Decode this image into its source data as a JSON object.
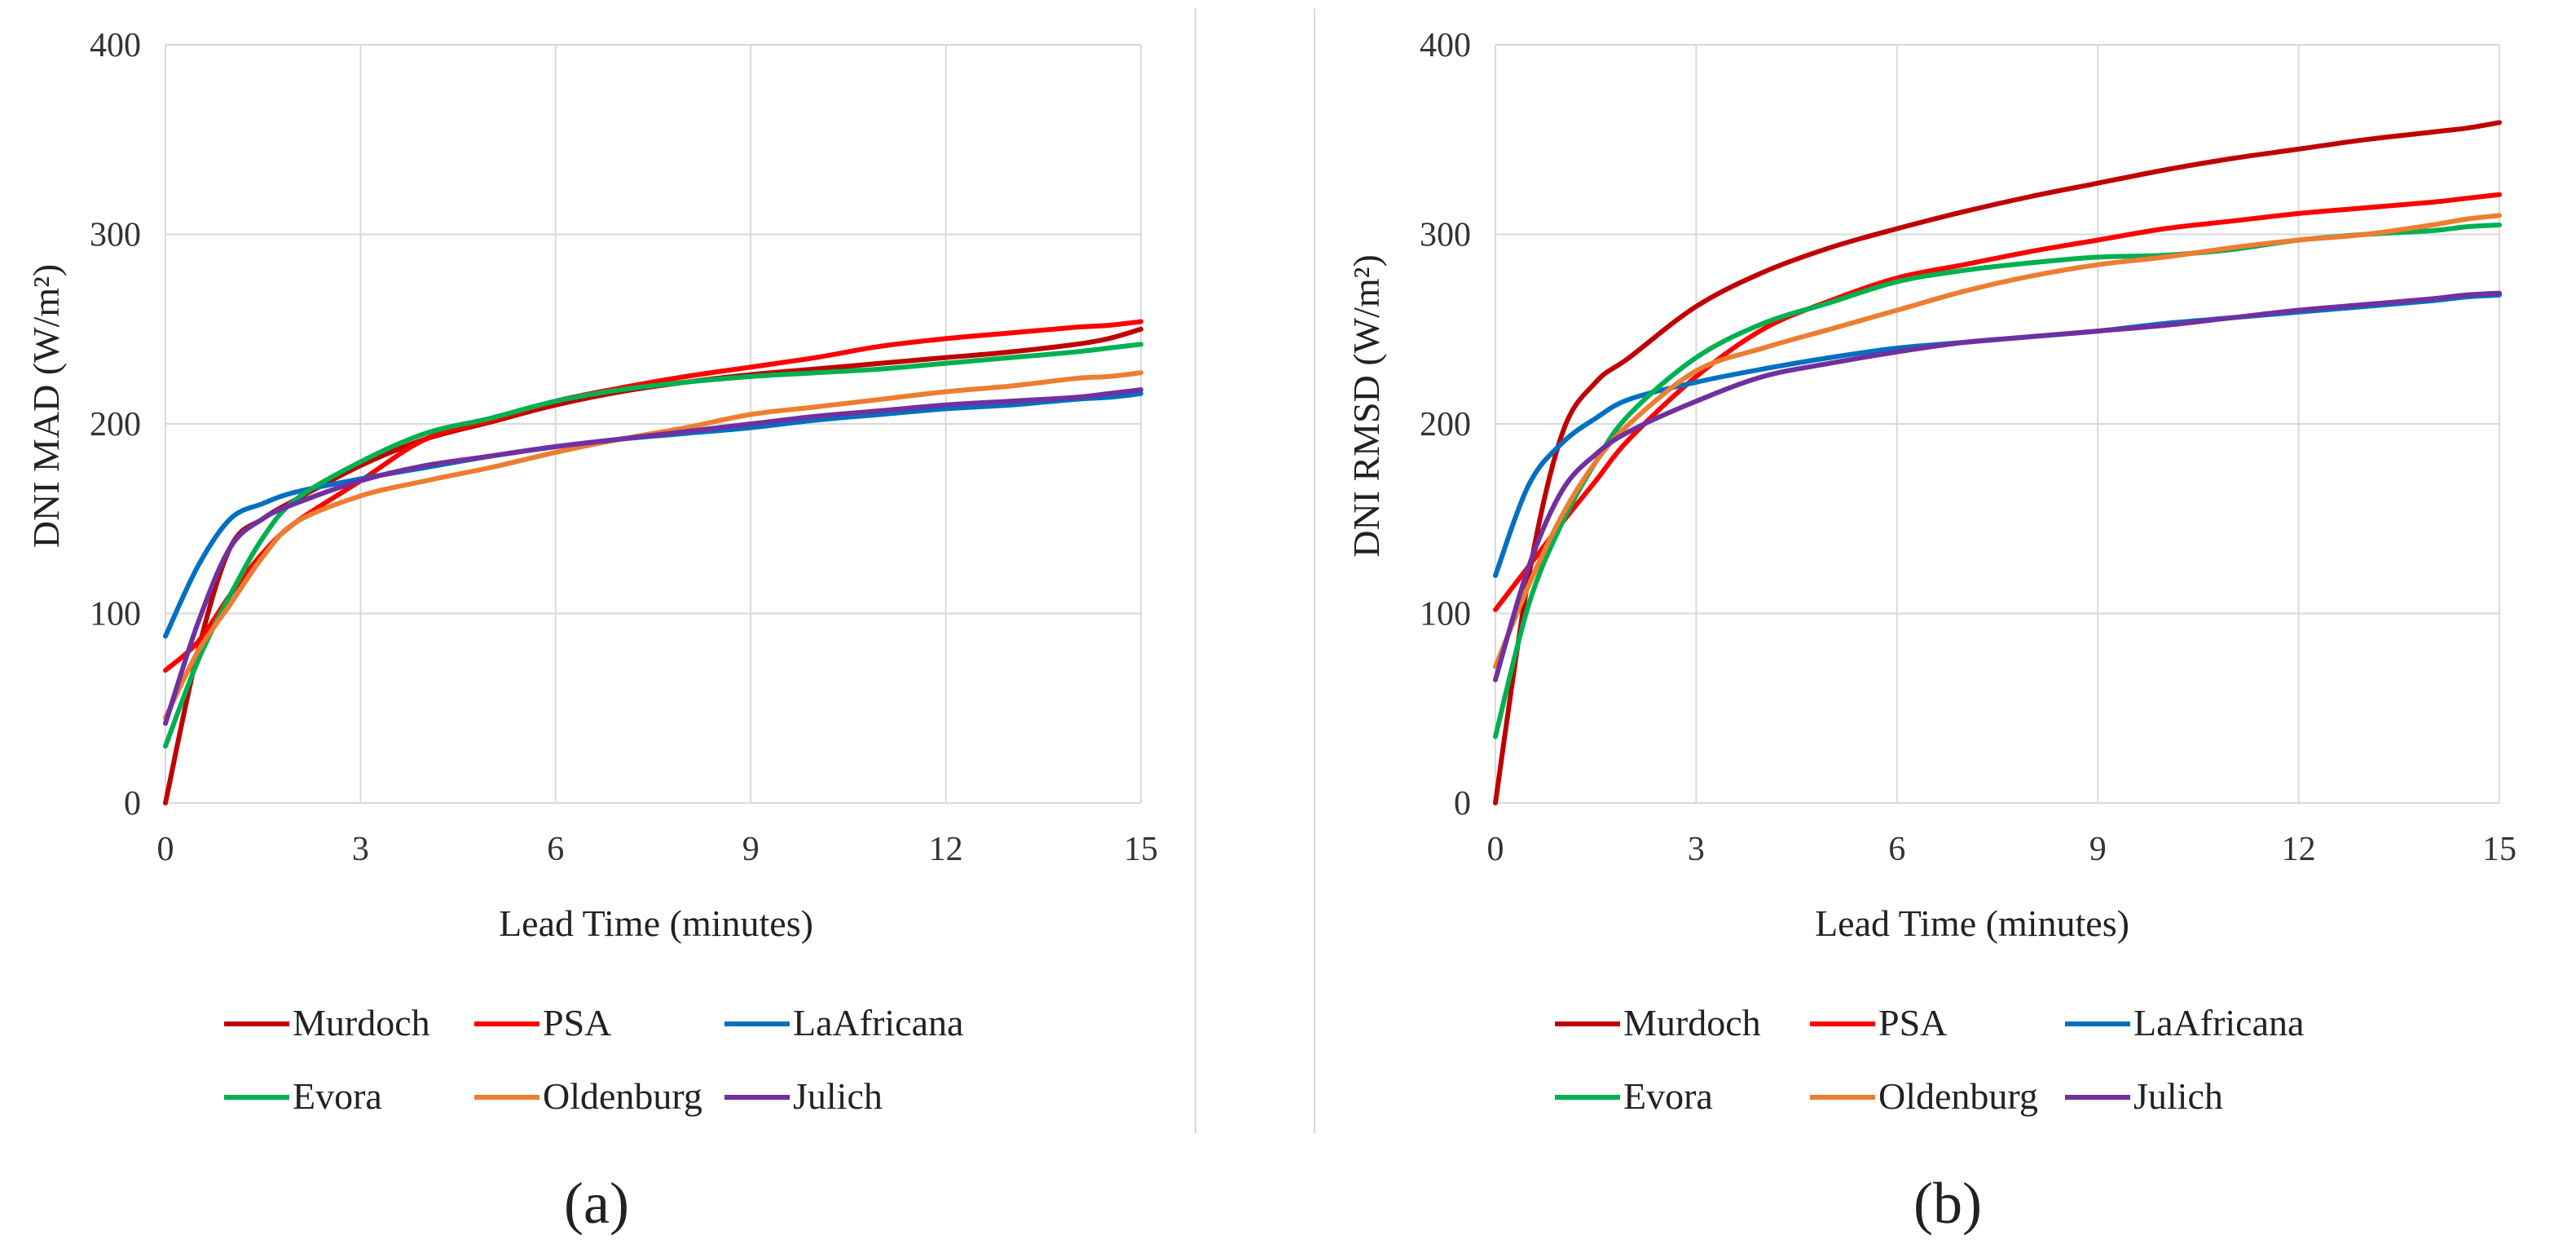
{
  "chart_data": [
    {
      "type": "line",
      "panel_label": "a",
      "caption": "(a)",
      "xlabel": "Lead Time (minutes)",
      "ylabel": "DNI MAD (W/m²)",
      "xlim": [
        0,
        15
      ],
      "ylim": [
        0,
        400
      ],
      "xticks": [
        0,
        3,
        6,
        9,
        12,
        15
      ],
      "yticks": [
        0,
        100,
        200,
        300,
        400
      ],
      "grid": true,
      "legend": "bottom",
      "x": [
        0,
        0.5,
        1,
        1.5,
        2,
        3,
        4,
        5,
        6,
        7,
        8,
        9,
        10,
        11,
        12,
        13,
        14,
        14.5,
        15
      ],
      "series": [
        {
          "name": "Murdoch",
          "color": "#c00000",
          "values": [
            0,
            80,
            135,
            150,
            160,
            178,
            192,
            201,
            210,
            217,
            222,
            226,
            229,
            232,
            235,
            238,
            242,
            245,
            250
          ]
        },
        {
          "name": "PSA",
          "color": "#ff0000",
          "values": [
            70,
            85,
            110,
            132,
            148,
            170,
            192,
            202,
            212,
            219,
            225,
            230,
            235,
            241,
            245,
            248,
            251,
            252,
            254
          ]
        },
        {
          "name": "LaAfricana",
          "color": "#0070c0",
          "values": [
            88,
            125,
            150,
            158,
            164,
            171,
            177,
            183,
            188,
            192,
            195,
            198,
            202,
            205,
            208,
            210,
            213,
            214,
            216
          ]
        },
        {
          "name": "Evora",
          "color": "#00b050",
          "values": [
            30,
            75,
            110,
            140,
            160,
            180,
            195,
            203,
            212,
            218,
            222,
            225,
            227,
            229,
            232,
            235,
            238,
            240,
            242
          ]
        },
        {
          "name": "Oldenburg",
          "color": "#ed7d31",
          "values": [
            45,
            80,
            105,
            130,
            148,
            162,
            170,
            177,
            185,
            192,
            198,
            205,
            209,
            213,
            217,
            220,
            224,
            225,
            227
          ]
        },
        {
          "name": "Julich",
          "color": "#7030a0",
          "values": [
            42,
            95,
            135,
            150,
            158,
            170,
            178,
            183,
            188,
            192,
            196,
            200,
            204,
            207,
            210,
            212,
            214,
            216,
            218
          ]
        }
      ]
    },
    {
      "type": "line",
      "panel_label": "b",
      "caption": "(b)",
      "xlabel": "Lead Time (minutes)",
      "ylabel": "DNI RMSD (W/m²)",
      "xlim": [
        0,
        15
      ],
      "ylim": [
        0,
        400
      ],
      "xticks": [
        0,
        3,
        6,
        9,
        12,
        15
      ],
      "yticks": [
        0,
        100,
        200,
        300,
        400
      ],
      "grid": true,
      "legend": "bottom",
      "x": [
        0,
        0.5,
        1,
        1.5,
        2,
        3,
        4,
        5,
        6,
        7,
        8,
        9,
        10,
        11,
        12,
        13,
        14,
        14.5,
        15
      ],
      "series": [
        {
          "name": "Murdoch",
          "color": "#c00000",
          "values": [
            0,
            120,
            195,
            222,
            235,
            262,
            280,
            293,
            303,
            312,
            320,
            327,
            334,
            340,
            345,
            350,
            354,
            356,
            359
          ]
        },
        {
          "name": "PSA",
          "color": "#ff0000",
          "values": [
            102,
            125,
            148,
            170,
            192,
            225,
            250,
            265,
            277,
            284,
            291,
            297,
            303,
            307,
            311,
            314,
            317,
            319,
            321
          ]
        },
        {
          "name": "LaAfricana",
          "color": "#0070c0",
          "values": [
            120,
            168,
            190,
            203,
            213,
            222,
            229,
            235,
            240,
            243,
            246,
            249,
            253,
            256,
            259,
            262,
            265,
            267,
            268
          ]
        },
        {
          "name": "Evora",
          "color": "#00b050",
          "values": [
            35,
            105,
            148,
            180,
            205,
            235,
            253,
            264,
            275,
            281,
            285,
            288,
            289,
            292,
            297,
            300,
            302,
            304,
            305
          ]
        },
        {
          "name": "Oldenburg",
          "color": "#ed7d31",
          "values": [
            72,
            115,
            152,
            180,
            200,
            228,
            240,
            250,
            260,
            270,
            278,
            284,
            288,
            293,
            297,
            300,
            305,
            308,
            310
          ]
        },
        {
          "name": "Julich",
          "color": "#7030a0",
          "values": [
            65,
            125,
            165,
            184,
            196,
            212,
            225,
            232,
            238,
            243,
            246,
            249,
            252,
            256,
            260,
            263,
            266,
            268,
            269
          ]
        }
      ]
    }
  ]
}
